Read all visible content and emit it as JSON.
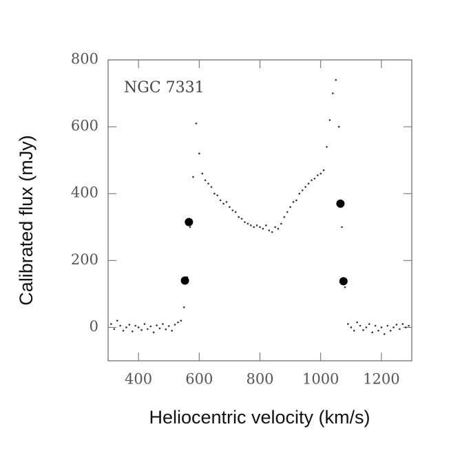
{
  "chart_data": {
    "type": "scatter",
    "annotation": "NGC 7331",
    "x_label": "Heliocentric velocity (km/s)",
    "y_label": "Calibrated flux (mJy)",
    "xlim": [
      300,
      1300
    ],
    "ylim": [
      -100,
      800
    ],
    "xticks": [
      400,
      600,
      800,
      1000,
      1200
    ],
    "yticks": [
      0,
      200,
      400,
      600,
      800
    ],
    "series": [
      {
        "color": "#333333",
        "size": 1.3,
        "x": [
          310,
          320,
          330,
          340,
          350,
          360,
          370,
          380,
          390,
          400,
          410,
          420,
          430,
          440,
          450,
          460,
          470,
          480,
          490,
          500,
          510,
          520,
          530,
          540,
          550,
          560,
          570,
          580,
          590,
          600,
          610,
          620,
          630,
          640,
          650,
          660,
          670,
          680,
          690,
          700,
          710,
          720,
          730,
          740,
          750,
          760,
          770,
          780,
          790,
          800,
          810,
          820,
          830,
          840,
          850,
          860,
          870,
          880,
          890,
          900,
          910,
          920,
          930,
          940,
          950,
          960,
          970,
          980,
          990,
          1000,
          1010,
          1020,
          1030,
          1040,
          1050,
          1060,
          1070,
          1080,
          1090,
          1100,
          1110,
          1120,
          1130,
          1140,
          1150,
          1160,
          1170,
          1180,
          1190,
          1200,
          1210,
          1220,
          1230,
          1240,
          1250,
          1260,
          1270,
          1280,
          1290
        ],
        "values": [
          10,
          -5,
          20,
          5,
          -10,
          0,
          8,
          -12,
          5,
          0,
          -8,
          10,
          -5,
          3,
          -15,
          6,
          -3,
          10,
          -6,
          4,
          -10,
          8,
          15,
          20,
          60,
          150,
          300,
          450,
          610,
          520,
          460,
          440,
          430,
          420,
          400,
          395,
          380,
          370,
          375,
          360,
          350,
          345,
          330,
          325,
          315,
          310,
          305,
          300,
          305,
          300,
          295,
          305,
          290,
          285,
          300,
          295,
          310,
          330,
          345,
          360,
          375,
          380,
          400,
          410,
          420,
          430,
          440,
          445,
          455,
          460,
          470,
          540,
          620,
          700,
          740,
          600,
          300,
          120,
          10,
          0,
          -10,
          15,
          5,
          -8,
          0,
          10,
          -15,
          5,
          -10,
          0,
          -20,
          5,
          -10,
          0,
          8,
          -5,
          10,
          0,
          5
        ]
      },
      {
        "color": "#000000",
        "size": 6,
        "x": [
          553,
          566,
          1065,
          1075
        ],
        "values": [
          140,
          315,
          370,
          138
        ]
      }
    ]
  }
}
